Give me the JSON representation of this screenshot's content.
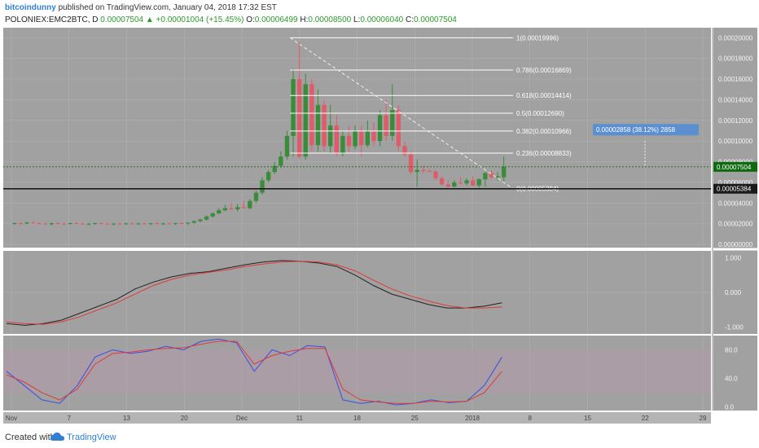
{
  "header": {
    "author": "bitcoindunny",
    "published_text": "published on TradingView.com, January 04, 2018 17:32 EST",
    "symbol": "POLONIEX:EMC2BTC, D",
    "last": "0.00007504",
    "change": "▲ +0.00001004 (+15.45%)",
    "o_label": "O:",
    "o_value": "0.00006499",
    "h_label": "H:",
    "h_value": "0.00008500",
    "l_label": "L:",
    "l_value": "0.00006040",
    "c_label": "C:",
    "c_value": "0.00007504"
  },
  "footer": {
    "created": "Created with",
    "brand": "TradingView",
    "logo_icon": "tradingview-cloud-icon"
  },
  "colors": {
    "pane_bg": "#a1a1a1",
    "bull": "#3a8b3a",
    "bear": "#e05a6a",
    "fib": "#ffffff",
    "macd_line": "#222222",
    "signal_line": "#e03a3a",
    "stoch_k": "#3a4fe0",
    "stoch_d": "#e03a3a",
    "price_tag": "#0d6b0d",
    "measure_tag": "#5b8fd0"
  },
  "chart_data": [
    {
      "type": "candlestick",
      "title": "POLONIEX:EMC2BTC, D",
      "x_ticks": [
        "Nov",
        "7",
        "13",
        "20",
        "Dec",
        "11",
        "18",
        "25",
        "2018",
        "8",
        "15",
        "22",
        "29"
      ],
      "y_ticks": [
        "0.00020000",
        "0.00018000",
        "0.00016000",
        "0.00014000",
        "0.00012000",
        "0.00010000",
        "0.00008000",
        "0.00006000",
        "0.00004000",
        "0.00002000",
        "0.00000000"
      ],
      "ylim": [
        0,
        0.000205
      ],
      "grid": true,
      "current_price": "0.00007504",
      "level_price": "0.00005384",
      "ohlc": [
        [
          2e-05,
          2.1e-05,
          1.9e-05,
          2.05e-05
        ],
        [
          2.05e-05,
          2.15e-05,
          1.95e-05,
          2e-05
        ],
        [
          2e-05,
          2.2e-05,
          1.95e-05,
          2.1e-05
        ],
        [
          2.1e-05,
          2.25e-05,
          2e-05,
          2.05e-05
        ],
        [
          2.05e-05,
          2.15e-05,
          1.95e-05,
          2e-05
        ],
        [
          2e-05,
          2.1e-05,
          1.9e-05,
          1.95e-05
        ],
        [
          1.95e-05,
          2.1e-05,
          1.85e-05,
          2.05e-05
        ],
        [
          2.05e-05,
          2.15e-05,
          1.95e-05,
          2e-05
        ],
        [
          2e-05,
          2.1e-05,
          1.9e-05,
          1.98e-05
        ],
        [
          1.98e-05,
          2.1e-05,
          1.9e-05,
          2.05e-05
        ],
        [
          2.05e-05,
          2.15e-05,
          1.95e-05,
          2e-05
        ],
        [
          2e-05,
          2.1e-05,
          1.9e-05,
          1.95e-05
        ],
        [
          1.95e-05,
          2.05e-05,
          1.85e-05,
          2e-05
        ],
        [
          2e-05,
          2.1e-05,
          1.9e-05,
          2.05e-05
        ],
        [
          2.05e-05,
          2.15e-05,
          1.95e-05,
          2e-05
        ],
        [
          2e-05,
          2.1e-05,
          1.9e-05,
          1.96e-05
        ],
        [
          1.96e-05,
          2.06e-05,
          1.86e-05,
          2.01e-05
        ],
        [
          2.01e-05,
          2.11e-05,
          1.91e-05,
          1.98e-05
        ],
        [
          1.98e-05,
          2.08e-05,
          1.88e-05,
          2.03e-05
        ],
        [
          2.03e-05,
          2.13e-05,
          1.93e-05,
          1.99e-05
        ],
        [
          1.99e-05,
          2.09e-05,
          1.89e-05,
          2.02e-05
        ],
        [
          2.02e-05,
          2.12e-05,
          1.92e-05,
          1.97e-05
        ],
        [
          1.97e-05,
          2.07e-05,
          1.87e-05,
          2.04e-05
        ],
        [
          2.04e-05,
          2.14e-05,
          1.94e-05,
          2e-05
        ],
        [
          2e-05,
          2.1e-05,
          1.9e-05,
          2.02e-05
        ],
        [
          2.02e-05,
          2.12e-05,
          1.92e-05,
          1.98e-05
        ],
        [
          1.98e-05,
          2.08e-05,
          1.88e-05,
          2.05e-05
        ],
        [
          2.05e-05,
          2.15e-05,
          1.95e-05,
          2.01e-05
        ],
        [
          2.01e-05,
          2.11e-05,
          1.91e-05,
          2.1e-05
        ],
        [
          2.1e-05,
          2.3e-05,
          2e-05,
          2.25e-05
        ],
        [
          2.25e-05,
          2.5e-05,
          2.15e-05,
          2.4e-05
        ],
        [
          2.4e-05,
          2.8e-05,
          2.3e-05,
          2.7e-05
        ],
        [
          2.7e-05,
          3.1e-05,
          2.6e-05,
          3e-05
        ],
        [
          3e-05,
          3.5e-05,
          2.9e-05,
          3.3e-05
        ],
        [
          3.3e-05,
          3.8e-05,
          3.2e-05,
          3.5e-05
        ],
        [
          3.5e-05,
          4e-05,
          3.3e-05,
          3.4e-05
        ],
        [
          3.4e-05,
          3.9e-05,
          3.2e-05,
          3.6e-05
        ],
        [
          3.6e-05,
          4.2e-05,
          3.5e-05,
          3.5e-05
        ],
        [
          3.5e-05,
          4.4e-05,
          3.4e-05,
          4.2e-05
        ],
        [
          4.2e-05,
          5.2e-05,
          4e-05,
          5e-05
        ],
        [
          5e-05,
          6.5e-05,
          4.8e-05,
          6.2e-05
        ],
        [
          6.2e-05,
          7.2e-05,
          6e-05,
          7e-05
        ],
        [
          7e-05,
          8e-05,
          6.8e-05,
          7.6e-05
        ],
        [
          7.6e-05,
          9e-05,
          7.4e-05,
          8.5e-05
        ],
        [
          8.5e-05,
          0.00011,
          8.2e-05,
          0.000105
        ],
        [
          0.000105,
          0.00017,
          8.5e-05,
          0.00016
        ],
        [
          0.00016,
          0.000196,
          8.3e-05,
          8.5e-05
        ],
        [
          8.5e-05,
          0.000165,
          8.2e-05,
          0.000155
        ],
        [
          0.000155,
          0.00016,
          9e-05,
          9.6e-05
        ],
        [
          9.6e-05,
          0.00015,
          9e-05,
          0.000135
        ],
        [
          0.000135,
          0.00014,
          9e-05,
          9.5e-05
        ],
        [
          9.5e-05,
          0.000135,
          8.8e-05,
          0.000115
        ],
        [
          0.000115,
          0.000125,
          8.5e-05,
          8.8e-05
        ],
        [
          8.8e-05,
          0.00011,
          8.5e-05,
          0.000105
        ],
        [
          0.000105,
          0.000115,
          9e-05,
          9.5e-05
        ],
        [
          9.5e-05,
          0.000115,
          9.2e-05,
          0.00011
        ],
        [
          0.00011,
          0.000115,
          8.5e-05,
          9.6e-05
        ],
        [
          9.6e-05,
          0.00012,
          9.4e-05,
          0.00011
        ],
        [
          0.00011,
          0.000118,
          9.5e-05,
          0.0001
        ],
        [
          0.0001,
          0.00013,
          9.5e-05,
          0.000125
        ],
        [
          0.000125,
          0.00014,
          0.0001,
          0.000105
        ],
        [
          0.000105,
          0.000155,
          0.0001,
          0.00013
        ],
        [
          0.00013,
          0.000135,
          9e-05,
          9.5e-05
        ],
        [
          9.5e-05,
          0.0001,
          8.5e-05,
          8.7e-05
        ],
        [
          8.7e-05,
          9e-05,
          6.8e-05,
          7e-05
        ],
        [
          7e-05,
          8.2e-05,
          5.6e-05,
          7.2e-05
        ],
        [
          7.2e-05,
          7.6e-05,
          6.9e-05,
          7.1e-05
        ],
        [
          7.1e-05,
          7.3e-05,
          7e-05,
          7.05e-05
        ],
        [
          7.05e-05,
          7.2e-05,
          6.2e-05,
          6.4e-05
        ],
        [
          6.4e-05,
          6.6e-05,
          5.7e-05,
          5.8e-05
        ],
        [
          5.8e-05,
          6.2e-05,
          5.4e-05,
          5.6e-05
        ],
        [
          5.6e-05,
          6.2e-05,
          5.5e-05,
          6e-05
        ],
        [
          6e-05,
          6.5e-05,
          5.8e-05,
          5.9e-05
        ],
        [
          5.9e-05,
          6.4e-05,
          5.7e-05,
          6.2e-05
        ],
        [
          6.2e-05,
          6.6e-05,
          5.6e-05,
          5.7e-05
        ],
        [
          5.7e-05,
          6.4e-05,
          5.5e-05,
          6.3e-05
        ],
        [
          6.3e-05,
          7e-05,
          5.6e-05,
          6.9e-05
        ],
        [
          6.9e-05,
          7.2e-05,
          6.3e-05,
          6.5e-05
        ],
        [
          6.5e-05,
          7e-05,
          6.2e-05,
          6.6e-05
        ],
        [
          6.5e-05,
          8.5e-05,
          6.04e-05,
          7.5e-05
        ]
      ],
      "fib_levels": [
        {
          "label": "1(0.00019996)",
          "value": 0.00019996
        },
        {
          "label": "0.786(0.00016869)",
          "value": 0.00016869
        },
        {
          "label": "0.618(0.00014414)",
          "value": 0.00014414
        },
        {
          "label": "0.5(0.00012690)",
          "value": 0.0001269
        },
        {
          "label": "0.382(0.00010966)",
          "value": 0.00010966
        },
        {
          "label": "0.236(0.00008833)",
          "value": 8.833e-05
        },
        {
          "label": "0(0.00005384)",
          "value": 5.384e-05
        }
      ],
      "measure_label": "0.00002858 (38.12%) 2858"
    },
    {
      "type": "line",
      "ytick_labels": [
        "1.000",
        "0.000",
        "-1.000"
      ],
      "ylim": [
        -1.2,
        1.2
      ],
      "series": [
        {
          "values": [
            -0.9,
            -0.95,
            -0.9,
            -0.8,
            -0.6,
            -0.4,
            -0.2,
            0.1,
            0.3,
            0.45,
            0.55,
            0.6,
            0.7,
            0.8,
            0.88,
            0.92,
            0.9,
            0.85,
            0.75,
            0.5,
            0.2,
            -0.05,
            -0.2,
            -0.35,
            -0.45,
            -0.45,
            -0.4,
            -0.3
          ]
        },
        {
          "values": [
            -0.85,
            -0.9,
            -0.92,
            -0.85,
            -0.7,
            -0.5,
            -0.3,
            -0.05,
            0.2,
            0.38,
            0.5,
            0.58,
            0.65,
            0.75,
            0.82,
            0.88,
            0.9,
            0.88,
            0.8,
            0.62,
            0.35,
            0.1,
            -0.1,
            -0.25,
            -0.38,
            -0.45,
            -0.45,
            -0.42
          ]
        }
      ]
    },
    {
      "type": "line",
      "ytick_labels": [
        "80.0",
        "40.0",
        "0.0"
      ],
      "ylim": [
        -5,
        100
      ],
      "series": [
        {
          "values": [
            50,
            30,
            10,
            5,
            30,
            70,
            80,
            75,
            78,
            85,
            80,
            92,
            95,
            90,
            50,
            80,
            72,
            86,
            84,
            10,
            5,
            8,
            3,
            5,
            10,
            6,
            8,
            30,
            70
          ]
        },
        {
          "values": [
            45,
            35,
            20,
            10,
            25,
            60,
            75,
            77,
            80,
            82,
            83,
            88,
            92,
            92,
            60,
            72,
            78,
            82,
            82,
            25,
            10,
            7,
            5,
            5,
            8,
            7,
            8,
            20,
            50
          ]
        }
      ]
    }
  ]
}
